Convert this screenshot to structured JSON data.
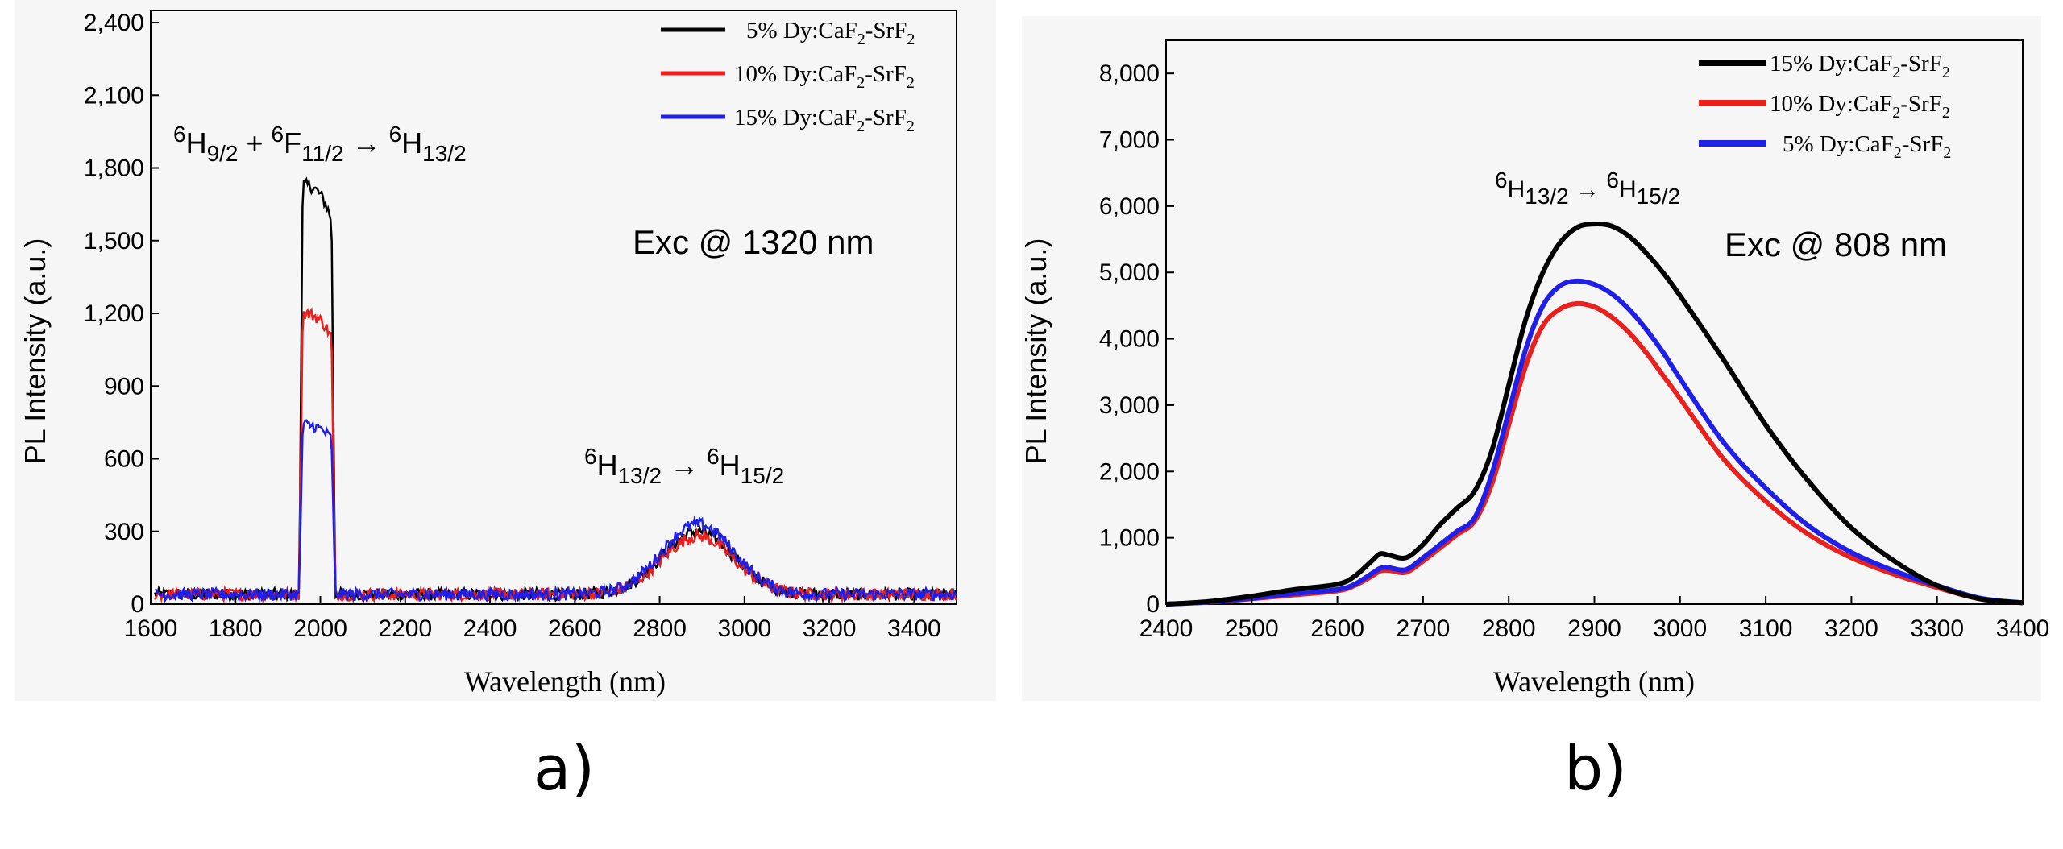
{
  "chart_data": [
    {
      "type": "line",
      "panel_label": "a)",
      "xlabel": "Wavelength (nm)",
      "ylabel": "PL Intensity (a.u.)",
      "xlim": [
        1600,
        3500
      ],
      "ylim": [
        0,
        2450
      ],
      "xticks": [
        "1600",
        "1800",
        "2000",
        "2200",
        "2400",
        "2600",
        "2800",
        "3000",
        "3200",
        "3400"
      ],
      "yticks": [
        "0",
        "300",
        "600",
        "900",
        "1,200",
        "1,500",
        "1,800",
        "2,100",
        "2,400"
      ],
      "annotations": {
        "transition1": {
          "t1": "H",
          "s1": "9/2",
          "sup1": "6",
          "plus": " + ",
          "sup2": "6",
          "t2": "F",
          "s2": "11/2",
          "arrow": " → ",
          "sup3": "6",
          "t3": "H",
          "s3": "13/2"
        },
        "transition2": {
          "sup1": "6",
          "t1": "H",
          "s1": "13/2",
          "arrow": " → ",
          "sup2": "6",
          "t2": "H",
          "s2": "15/2"
        },
        "excitation": "Exc @ 1320 nm"
      },
      "legend": {
        "position": "top-right",
        "entries": [
          {
            "prefix": "5% Dy:CaF",
            "sub": "2",
            "mid": "-SrF",
            "sub2": "2",
            "color": "#000000"
          },
          {
            "prefix": "10% Dy:CaF",
            "sub": "2",
            "mid": "-SrF",
            "sub2": "2",
            "color": "#e8201e"
          },
          {
            "prefix": "15% Dy:CaF",
            "sub": "2",
            "mid": "-SrF",
            "sub2": "2",
            "color": "#1f1fe8"
          }
        ]
      },
      "series": [
        {
          "name": "5% Dy:CaF2-SrF2",
          "color": "#000000",
          "peak1": 1730,
          "peak2": 300,
          "baseline": 40
        },
        {
          "name": "10% Dy:CaF2-SrF2",
          "color": "#e8201e",
          "peak1": 1200,
          "peak2": 280,
          "baseline": 40
        },
        {
          "name": "15% Dy:CaF2-SrF2",
          "color": "#1f1fe8",
          "peak1": 740,
          "peak2": 330,
          "baseline": 40
        }
      ],
      "band1": {
        "start": 1950,
        "end": 2035
      },
      "band2": {
        "center": 2890,
        "width": 120
      }
    },
    {
      "type": "line",
      "panel_label": "b)",
      "xlabel": "Wavelength (nm)",
      "ylabel": "PL Intensity (a.u.)",
      "xlim": [
        2400,
        3400
      ],
      "ylim": [
        0,
        8500
      ],
      "xticks": [
        "2400",
        "2500",
        "2600",
        "2700",
        "2800",
        "2900",
        "3000",
        "3100",
        "3200",
        "3300",
        "3400"
      ],
      "yticks": [
        "0",
        "1,000",
        "2,000",
        "3,000",
        "4,000",
        "5,000",
        "6,000",
        "7,000",
        "8,000"
      ],
      "annotations": {
        "transition": {
          "sup1": "6",
          "t1": "H",
          "s1": "13/2",
          "arrow": " → ",
          "sup2": "6",
          "t2": "H",
          "s2": "15/2"
        },
        "excitation": "Exc @ 808 nm"
      },
      "legend": {
        "position": "top-right",
        "entries": [
          {
            "prefix": "15% Dy:CaF",
            "sub": "2",
            "mid": "-SrF",
            "sub2": "2",
            "color": "#000000"
          },
          {
            "prefix": "10% Dy:CaF",
            "sub": "2",
            "mid": "-SrF",
            "sub2": "2",
            "color": "#e8201e"
          },
          {
            "prefix": "5% Dy:CaF",
            "sub": "2",
            "mid": "-SrF",
            "sub2": "2",
            "color": "#1f1fe8"
          }
        ]
      },
      "x": [
        2400,
        2450,
        2500,
        2550,
        2600,
        2620,
        2640,
        2650,
        2660,
        2680,
        2700,
        2720,
        2740,
        2760,
        2780,
        2800,
        2820,
        2840,
        2860,
        2880,
        2900,
        2920,
        2940,
        2960,
        2980,
        3000,
        3050,
        3100,
        3150,
        3200,
        3250,
        3300,
        3350,
        3400
      ],
      "series": [
        {
          "name": "15% Dy:CaF2-SrF2",
          "color": "#000000",
          "values": [
            0,
            40,
            120,
            220,
            300,
            420,
            650,
            760,
            740,
            700,
            900,
            1200,
            1450,
            1700,
            2300,
            3300,
            4300,
            5000,
            5450,
            5680,
            5730,
            5700,
            5550,
            5300,
            5000,
            4650,
            3700,
            2700,
            1850,
            1150,
            650,
            280,
            80,
            20
          ]
        },
        {
          "name": "10% Dy:CaF2-SrF2",
          "color": "#e8201e",
          "values": [
            0,
            30,
            80,
            140,
            200,
            280,
            420,
            500,
            510,
            480,
            650,
            850,
            1050,
            1250,
            1800,
            2700,
            3600,
            4200,
            4450,
            4530,
            4480,
            4330,
            4100,
            3800,
            3450,
            3100,
            2200,
            1550,
            1050,
            700,
            450,
            250,
            80,
            20
          ]
        },
        {
          "name": "5% Dy:CaF2-SrF2",
          "color": "#1f1fe8",
          "values": [
            0,
            30,
            90,
            160,
            220,
            300,
            460,
            540,
            550,
            520,
            700,
            900,
            1100,
            1300,
            1950,
            2900,
            3850,
            4500,
            4800,
            4870,
            4820,
            4680,
            4450,
            4150,
            3800,
            3400,
            2450,
            1750,
            1180,
            780,
            500,
            280,
            90,
            20
          ]
        }
      ]
    }
  ]
}
